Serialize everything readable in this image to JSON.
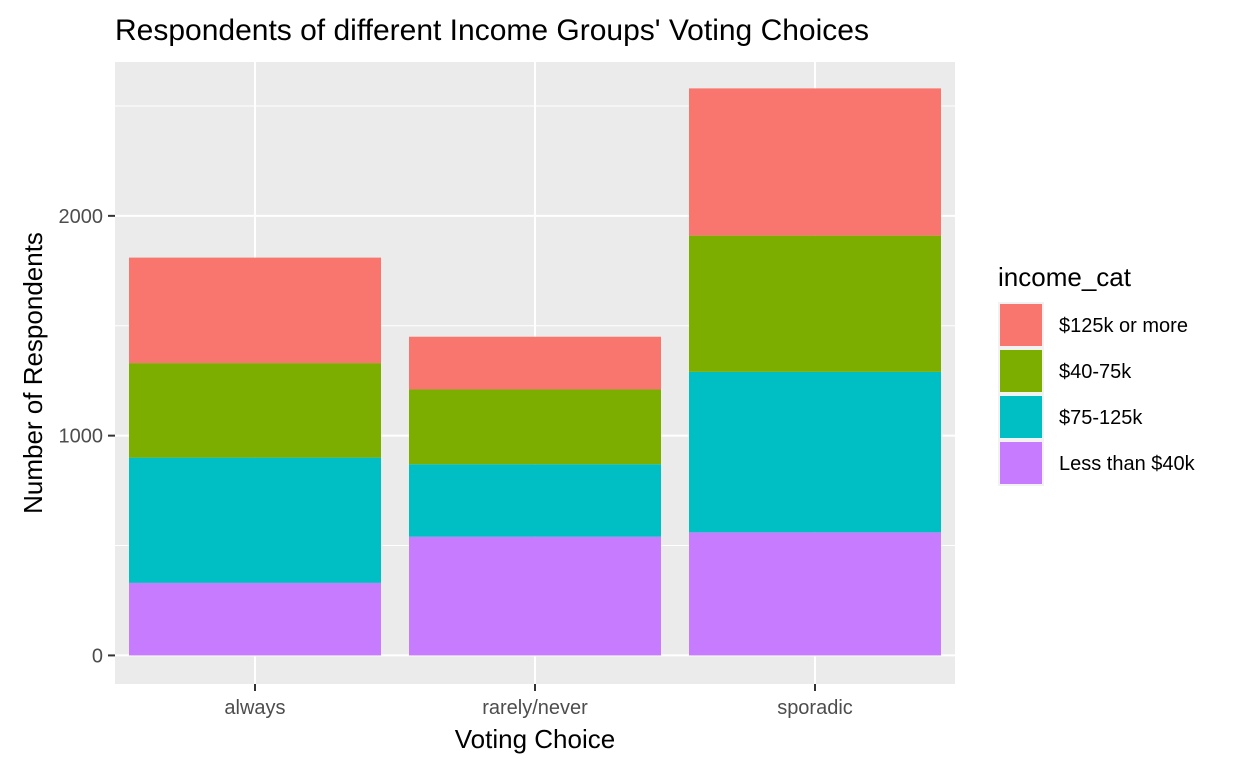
{
  "chart_data": {
    "type": "bar",
    "stacked": true,
    "title": "Respondents of different Income Groups' Voting Choices",
    "xlabel": "Voting Choice",
    "ylabel": "Number of Respondents",
    "categories": [
      "always",
      "rarely/never",
      "sporadic"
    ],
    "ylim": [
      -130,
      2700
    ],
    "yticks": [
      0,
      1000,
      2000
    ],
    "grid": true,
    "legend_title": "income_cat",
    "legend_position": "right",
    "stack_order_bottom_to_top": [
      "Less than $40k",
      "$75-125k",
      "$40-75k",
      "$125k or more"
    ],
    "series": [
      {
        "name": "$125k or more",
        "color": "#F8766D",
        "values": [
          480,
          240,
          670
        ]
      },
      {
        "name": "$40-75k",
        "color": "#7CAE00",
        "values": [
          430,
          340,
          620
        ]
      },
      {
        "name": "$75-125k",
        "color": "#00BFC4",
        "values": [
          570,
          330,
          730
        ]
      },
      {
        "name": "Less than $40k",
        "color": "#C77CFF",
        "values": [
          330,
          540,
          560
        ]
      }
    ]
  }
}
